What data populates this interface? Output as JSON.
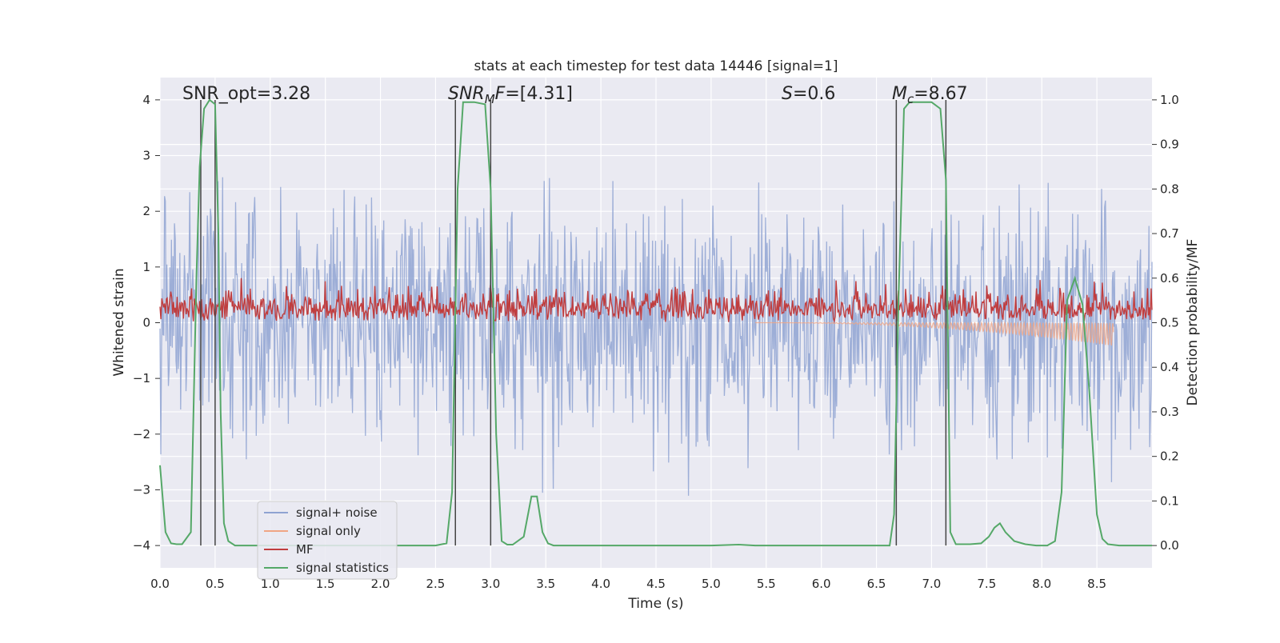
{
  "chart_data": {
    "type": "line",
    "title": "stats at each timestep for test data 14446 [signal=1]",
    "xlabel": "Time (s)",
    "ylabel": "Whitened strain",
    "y2label": "Detection probability/MF",
    "xlim": [
      0.0,
      9.0
    ],
    "ylim": [
      -4.4,
      4.4
    ],
    "y2lim": [
      -0.05,
      1.05
    ],
    "xticks": [
      "0.0",
      "0.5",
      "1.0",
      "1.5",
      "2.0",
      "2.5",
      "3.0",
      "3.5",
      "4.0",
      "4.5",
      "5.0",
      "5.5",
      "6.0",
      "6.5",
      "7.0",
      "7.5",
      "8.0",
      "8.5"
    ],
    "yticks": [
      "4",
      "3",
      "2",
      "1",
      "0",
      "−1",
      "−2",
      "−3",
      "−4"
    ],
    "y2ticks": [
      "1.0",
      "0.9",
      "0.8",
      "0.7",
      "0.6",
      "0.5",
      "0.4",
      "0.3",
      "0.2",
      "0.1",
      "0.0"
    ],
    "grid": true,
    "annotations": {
      "snr_opt": "SNR_opt=3.28",
      "snr_mf_sym": "SNR",
      "snr_mf_sub": "M",
      "snr_mf_sym2": "F",
      "snr_mf_val": "=[4.31]",
      "s_sym": "S",
      "s_val": "=0.6",
      "mc_sym": "M",
      "mc_sub": "c",
      "mc_val": "=8.67"
    },
    "vertical_lines": [
      0.37,
      0.5,
      2.68,
      3.0,
      6.68,
      7.13
    ],
    "legend": {
      "location": "lower-left",
      "entries": [
        {
          "label": "signal+ noise",
          "color": "#8fa3d2"
        },
        {
          "label": "signal only",
          "color": "#f0a584"
        },
        {
          "label": "MF",
          "color": "#c03d3e"
        },
        {
          "label": "signal statistics",
          "color": "#55a868"
        }
      ]
    },
    "series": [
      {
        "name": "signal statistics",
        "axis": "right",
        "x": [
          0.0,
          0.05,
          0.1,
          0.15,
          0.2,
          0.28,
          0.33,
          0.36,
          0.4,
          0.45,
          0.5,
          0.53,
          0.55,
          0.58,
          0.62,
          0.68,
          0.8,
          1.0,
          1.5,
          2.0,
          2.5,
          2.6,
          2.65,
          2.7,
          2.75,
          2.85,
          2.95,
          3.0,
          3.05,
          3.1,
          3.15,
          3.2,
          3.3,
          3.37,
          3.42,
          3.47,
          3.52,
          3.57,
          3.65,
          3.75,
          4.0,
          4.5,
          5.0,
          5.25,
          5.4,
          6.0,
          6.5,
          6.62,
          6.66,
          6.7,
          6.75,
          6.8,
          7.0,
          7.08,
          7.13,
          7.17,
          7.22,
          7.28,
          7.35,
          7.45,
          7.52,
          7.57,
          7.62,
          7.67,
          7.75,
          7.85,
          7.95,
          8.05,
          8.12,
          8.18,
          8.23,
          8.3,
          8.37,
          8.43,
          8.5,
          8.55,
          8.6,
          8.7,
          8.8,
          8.9,
          9.0
        ],
        "y": [
          0.18,
          0.03,
          0.005,
          0.003,
          0.003,
          0.03,
          0.6,
          0.85,
          0.98,
          1.0,
          0.99,
          0.7,
          0.3,
          0.05,
          0.01,
          0.0,
          0.0,
          0.0,
          0.0,
          0.0,
          0.0,
          0.005,
          0.12,
          0.8,
          0.995,
          0.995,
          0.99,
          0.8,
          0.25,
          0.01,
          0.002,
          0.002,
          0.02,
          0.11,
          0.11,
          0.03,
          0.005,
          0.0,
          0.0,
          0.0,
          0.0,
          0.0,
          0.0,
          0.002,
          0.0,
          0.0,
          0.0,
          0.0,
          0.07,
          0.55,
          0.98,
          0.995,
          0.995,
          0.98,
          0.82,
          0.03,
          0.003,
          0.003,
          0.003,
          0.005,
          0.02,
          0.04,
          0.05,
          0.03,
          0.01,
          0.003,
          0.0,
          0.0,
          0.01,
          0.12,
          0.55,
          0.6,
          0.54,
          0.35,
          0.07,
          0.015,
          0.003,
          0.0,
          0.0,
          0.0,
          0.0
        ]
      },
      {
        "name": "signal+ noise",
        "axis": "left",
        "description_range": "dense noise spanning roughly -3.5 to 3.8"
      },
      {
        "name": "MF",
        "axis": "right",
        "description_range": "noisy band between about 0.5 and 0.6"
      },
      {
        "name": "signal only",
        "axis": "left",
        "description_range": "chirp growing from 0 near t=5.5 to about -0.4 at t=8.65"
      }
    ]
  }
}
